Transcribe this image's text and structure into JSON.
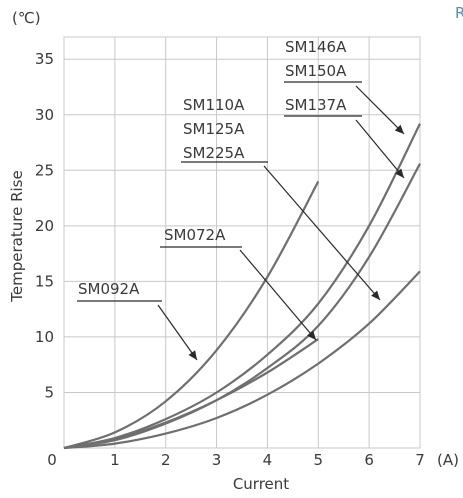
{
  "chart_data": {
    "type": "line",
    "xlabel": "Current",
    "ylabel": "Temperature Rise",
    "x_unit": "(A)",
    "y_unit": "(℃)",
    "xlim": [
      0,
      7
    ],
    "ylim": [
      0,
      37
    ],
    "x_ticks": [
      0,
      1,
      2,
      3,
      4,
      5,
      6,
      7
    ],
    "y_ticks": [
      5,
      10,
      15,
      20,
      25,
      30,
      35
    ],
    "grid": true,
    "series": [
      {
        "name": "SM092A",
        "x": [
          0,
          1,
          2,
          3,
          4,
          5
        ],
        "y": [
          0,
          1.4,
          4.2,
          8.8,
          15.4,
          24.0
        ]
      },
      {
        "name": "SM072A",
        "x": [
          0,
          1,
          2,
          3,
          4,
          5
        ],
        "y": [
          0,
          0.8,
          2.3,
          4.3,
          6.8,
          9.8
        ]
      },
      {
        "name": "SM146A / SM150A",
        "x": [
          0,
          1,
          2,
          3,
          4,
          5,
          6,
          7
        ],
        "y": [
          0,
          0.9,
          2.6,
          5.0,
          8.4,
          13.0,
          20.0,
          29.2
        ]
      },
      {
        "name": "SM137A",
        "x": [
          0,
          1,
          2,
          3,
          4,
          5,
          6,
          7
        ],
        "y": [
          0,
          0.7,
          2.2,
          4.3,
          7.2,
          11.0,
          17.2,
          25.6
        ]
      },
      {
        "name": "SM110A / SM125A / SM225A",
        "x": [
          0,
          1,
          2,
          3,
          4,
          5,
          6,
          7
        ],
        "y": [
          0,
          0.4,
          1.3,
          2.7,
          4.8,
          7.6,
          11.2,
          15.9
        ]
      }
    ],
    "annotations": [
      {
        "lines": [
          "SM092A"
        ]
      },
      {
        "lines": [
          "SM072A"
        ]
      },
      {
        "lines": [
          "SM110A",
          "SM125A",
          "SM225A"
        ]
      },
      {
        "lines": [
          "SM146A",
          "SM150A"
        ]
      },
      {
        "lines": [
          "SM137A"
        ]
      }
    ]
  },
  "corner_mark": "R"
}
